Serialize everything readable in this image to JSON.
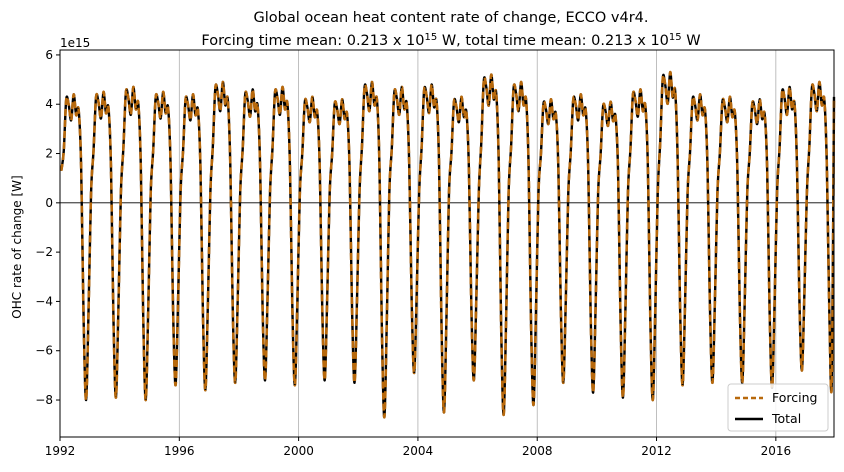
{
  "chart_data": {
    "type": "line",
    "title_line1": "Global ocean heat content rate of change, ECCO v4r4.",
    "title_line2_part1": "Forcing time mean: 0.213 x 10",
    "title_line2_sup1": "15",
    "title_line2_part2": " W, total time mean: 0.213 x 10",
    "title_line2_sup2": "15",
    "title_line2_part3": " W",
    "ylabel": "OHC rate of change [W]",
    "y_offset_label": "1e15",
    "xlim": [
      1992.0,
      2017.95
    ],
    "ylim": [
      -9.5,
      6.2
    ],
    "xticks": [
      1992,
      1996,
      2000,
      2004,
      2008,
      2012,
      2016
    ],
    "xtick_labels": [
      "1992",
      "1996",
      "2000",
      "2004",
      "2008",
      "2012",
      "2016"
    ],
    "yticks": [
      -8,
      -6,
      -4,
      -2,
      0,
      2,
      4,
      6
    ],
    "ytick_labels": [
      "−8",
      "−6",
      "−4",
      "−2",
      "0",
      "2",
      "4",
      "6"
    ],
    "grid": "vertical",
    "zero_line": true,
    "legend_position": "lower-right",
    "years": [
      1992,
      1993,
      1994,
      1995,
      1996,
      1997,
      1998,
      1999,
      2000,
      2001,
      2002,
      2003,
      2004,
      2005,
      2006,
      2007,
      2008,
      2009,
      2010,
      2011,
      2012,
      2013,
      2014,
      2015,
      2016,
      2017
    ],
    "annual_max": [
      4.4,
      4.5,
      4.7,
      4.5,
      4.4,
      4.9,
      4.6,
      4.7,
      4.3,
      4.2,
      4.9,
      4.7,
      4.8,
      4.3,
      5.2,
      4.9,
      4.2,
      4.4,
      4.1,
      4.6,
      5.3,
      4.4,
      4.3,
      4.2,
      4.7,
      4.9
    ],
    "annual_min": [
      -8.0,
      -7.9,
      -8.0,
      -7.4,
      -7.6,
      -7.3,
      -7.2,
      -7.4,
      -7.2,
      -7.3,
      -8.7,
      -6.9,
      -8.5,
      -7.2,
      -8.6,
      -8.2,
      -7.3,
      -7.7,
      -7.9,
      -8.0,
      -7.4,
      -7.3,
      -7.3,
      -7.5,
      -6.8,
      -7.3
    ],
    "series": [
      {
        "name": "Forcing",
        "color": "#b8690c",
        "style": "dashed"
      },
      {
        "name": "Total",
        "color": "#000000",
        "style": "solid"
      }
    ]
  }
}
